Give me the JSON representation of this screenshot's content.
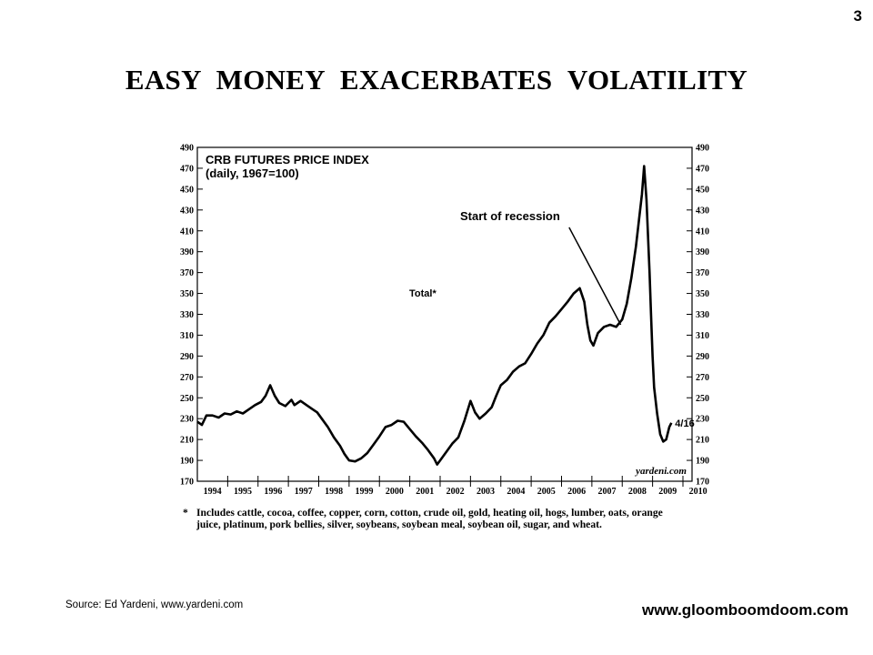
{
  "page_number": "3",
  "slide_title": "EASY MONEY EXACERBATES VOLATILITY",
  "chart_data": {
    "type": "line",
    "title": "CRB FUTURES PRICE INDEX",
    "subtitle": "(daily, 1967=100)",
    "series_label": "Total*",
    "annotation": "Start of recession",
    "end_label": "4/16",
    "watermark": "yardeni.com",
    "ylim": [
      170,
      490
    ],
    "y_ticks": [
      490,
      470,
      450,
      430,
      410,
      390,
      370,
      350,
      330,
      310,
      290,
      270,
      250,
      230,
      210,
      190,
      170
    ],
    "x_ticks": [
      "1994",
      "1995",
      "1996",
      "1997",
      "1998",
      "1999",
      "2000",
      "2001",
      "2002",
      "2003",
      "2004",
      "2005",
      "2006",
      "2007",
      "2008",
      "2009",
      "2010"
    ],
    "xlim": [
      1994.0,
      2010.3
    ],
    "recession_start": {
      "x": 2007.95,
      "y": 320
    },
    "series": [
      {
        "points": [
          [
            1994.0,
            227
          ],
          [
            1994.15,
            224
          ],
          [
            1994.3,
            233
          ],
          [
            1994.5,
            233
          ],
          [
            1994.7,
            231
          ],
          [
            1994.9,
            235
          ],
          [
            1995.1,
            234
          ],
          [
            1995.3,
            237
          ],
          [
            1995.5,
            235
          ],
          [
            1995.7,
            239
          ],
          [
            1995.9,
            243
          ],
          [
            1996.1,
            246
          ],
          [
            1996.25,
            252
          ],
          [
            1996.4,
            262
          ],
          [
            1996.55,
            252
          ],
          [
            1996.7,
            245
          ],
          [
            1996.9,
            242
          ],
          [
            1997.1,
            248
          ],
          [
            1997.2,
            243
          ],
          [
            1997.4,
            247
          ],
          [
            1997.6,
            243
          ],
          [
            1997.8,
            239
          ],
          [
            1997.95,
            236
          ],
          [
            1998.1,
            230
          ],
          [
            1998.3,
            222
          ],
          [
            1998.5,
            212
          ],
          [
            1998.7,
            204
          ],
          [
            1998.85,
            196
          ],
          [
            1999.0,
            190
          ],
          [
            1999.2,
            189
          ],
          [
            1999.4,
            192
          ],
          [
            1999.6,
            197
          ],
          [
            1999.8,
            205
          ],
          [
            2000.0,
            213
          ],
          [
            2000.2,
            222
          ],
          [
            2000.4,
            224
          ],
          [
            2000.6,
            228
          ],
          [
            2000.8,
            227
          ],
          [
            2001.0,
            220
          ],
          [
            2001.2,
            213
          ],
          [
            2001.4,
            207
          ],
          [
            2001.6,
            200
          ],
          [
            2001.8,
            192
          ],
          [
            2001.9,
            186
          ],
          [
            2002.0,
            190
          ],
          [
            2002.2,
            198
          ],
          [
            2002.4,
            206
          ],
          [
            2002.6,
            212
          ],
          [
            2002.8,
            228
          ],
          [
            2003.0,
            247
          ],
          [
            2003.15,
            236
          ],
          [
            2003.3,
            230
          ],
          [
            2003.5,
            235
          ],
          [
            2003.7,
            241
          ],
          [
            2003.85,
            252
          ],
          [
            2004.0,
            262
          ],
          [
            2004.2,
            267
          ],
          [
            2004.4,
            275
          ],
          [
            2004.6,
            280
          ],
          [
            2004.8,
            283
          ],
          [
            2005.0,
            292
          ],
          [
            2005.2,
            302
          ],
          [
            2005.4,
            310
          ],
          [
            2005.6,
            322
          ],
          [
            2005.8,
            328
          ],
          [
            2006.0,
            335
          ],
          [
            2006.2,
            342
          ],
          [
            2006.4,
            350
          ],
          [
            2006.6,
            355
          ],
          [
            2006.75,
            342
          ],
          [
            2006.85,
            320
          ],
          [
            2006.95,
            305
          ],
          [
            2007.05,
            300
          ],
          [
            2007.2,
            312
          ],
          [
            2007.4,
            318
          ],
          [
            2007.6,
            320
          ],
          [
            2007.8,
            318
          ],
          [
            2008.0,
            325
          ],
          [
            2008.15,
            340
          ],
          [
            2008.3,
            365
          ],
          [
            2008.45,
            395
          ],
          [
            2008.55,
            420
          ],
          [
            2008.65,
            445
          ],
          [
            2008.72,
            472
          ],
          [
            2008.8,
            440
          ],
          [
            2008.85,
            405
          ],
          [
            2008.9,
            370
          ],
          [
            2008.95,
            330
          ],
          [
            2009.0,
            290
          ],
          [
            2009.05,
            260
          ],
          [
            2009.15,
            235
          ],
          [
            2009.25,
            215
          ],
          [
            2009.35,
            208
          ],
          [
            2009.45,
            210
          ],
          [
            2009.55,
            222
          ],
          [
            2009.62,
            226
          ]
        ]
      }
    ]
  },
  "footnote": {
    "marker": "*",
    "lines": [
      "Includes cattle, cocoa, coffee, copper, corn, cotton, crude oil, gold, heating oil, hogs, lumber, oats, orange",
      "juice, platinum, pork bellies, silver, soybeans, soybean meal, soybean oil, sugar,  and wheat."
    ]
  },
  "source": "Source: Ed Yardeni, www.yardeni.com",
  "website": "www.gloomboomdoom.com"
}
